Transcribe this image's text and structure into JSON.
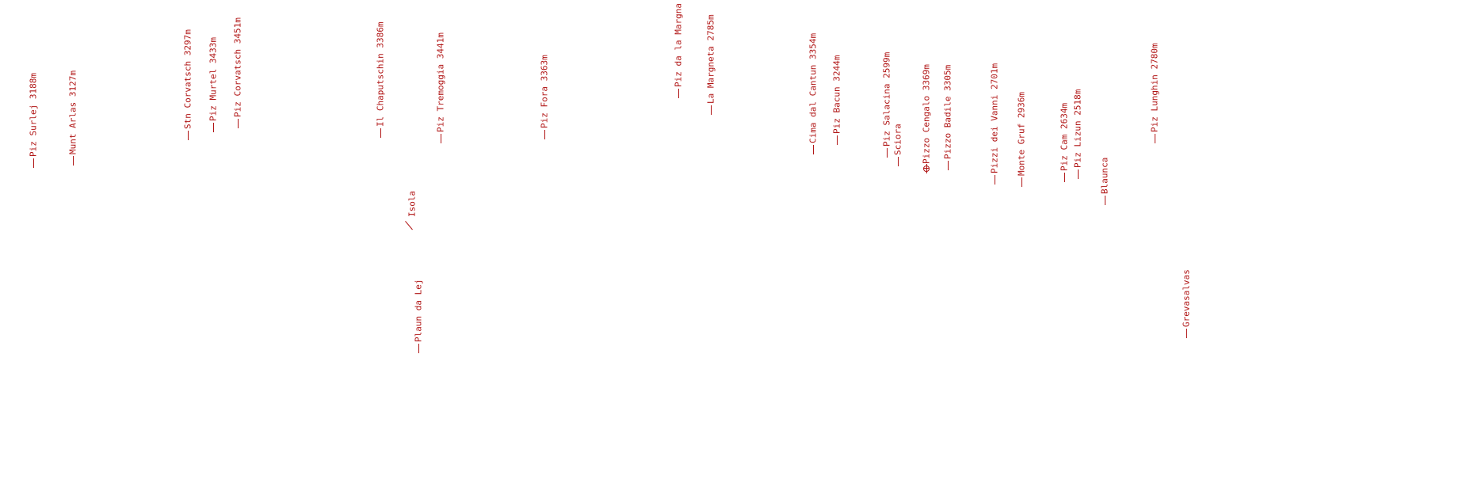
{
  "labels": [
    {
      "text": "Piz Surlej 3188m",
      "marker": "line"
    },
    {
      "text": "Munt Arlas 3127m",
      "marker": "line"
    },
    {
      "text": "Stn Corvatsch 3297m",
      "marker": "line"
    },
    {
      "text": "Piz Murtel 3433m",
      "marker": "line"
    },
    {
      "text": "Piz Corvatsch 3451m",
      "marker": "line"
    },
    {
      "text": "Il Chaputschin 3386m",
      "marker": "line"
    },
    {
      "text": "Isola",
      "marker": "slant"
    },
    {
      "text": "Plaun da Lej",
      "marker": "line"
    },
    {
      "text": "Piz Tremoggia 3441m",
      "marker": "line"
    },
    {
      "text": "Piz Fora 3363m",
      "marker": "line"
    },
    {
      "text": "Piz da la Margna 3158m",
      "marker": "line"
    },
    {
      "text": "La Margneta 2785m",
      "marker": "line"
    },
    {
      "text": "Cima dal Cantun 3354m",
      "marker": "line"
    },
    {
      "text": "Piz Bacun 3244m",
      "marker": "line"
    },
    {
      "text": "Piz Salacina 2599m",
      "marker": "line"
    },
    {
      "text": "Sciora",
      "marker": "line"
    },
    {
      "text": "Pizzo Cengalo 3369m",
      "marker": "target"
    },
    {
      "text": "Pizzo Badile 3305m",
      "marker": "line"
    },
    {
      "text": "Pizzi dei Vanni 2701m",
      "marker": "line"
    },
    {
      "text": "Monte Gruf 2936m",
      "marker": "line"
    },
    {
      "text": "Piz Cam 2634m",
      "marker": "line"
    },
    {
      "text": "Piz Lizun 2518m",
      "marker": "line"
    },
    {
      "text": "Blaunca",
      "marker": "line"
    },
    {
      "text": "Piz Lunghin 2780m",
      "marker": "line"
    },
    {
      "text": "Grevasalvas",
      "marker": "line"
    }
  ]
}
